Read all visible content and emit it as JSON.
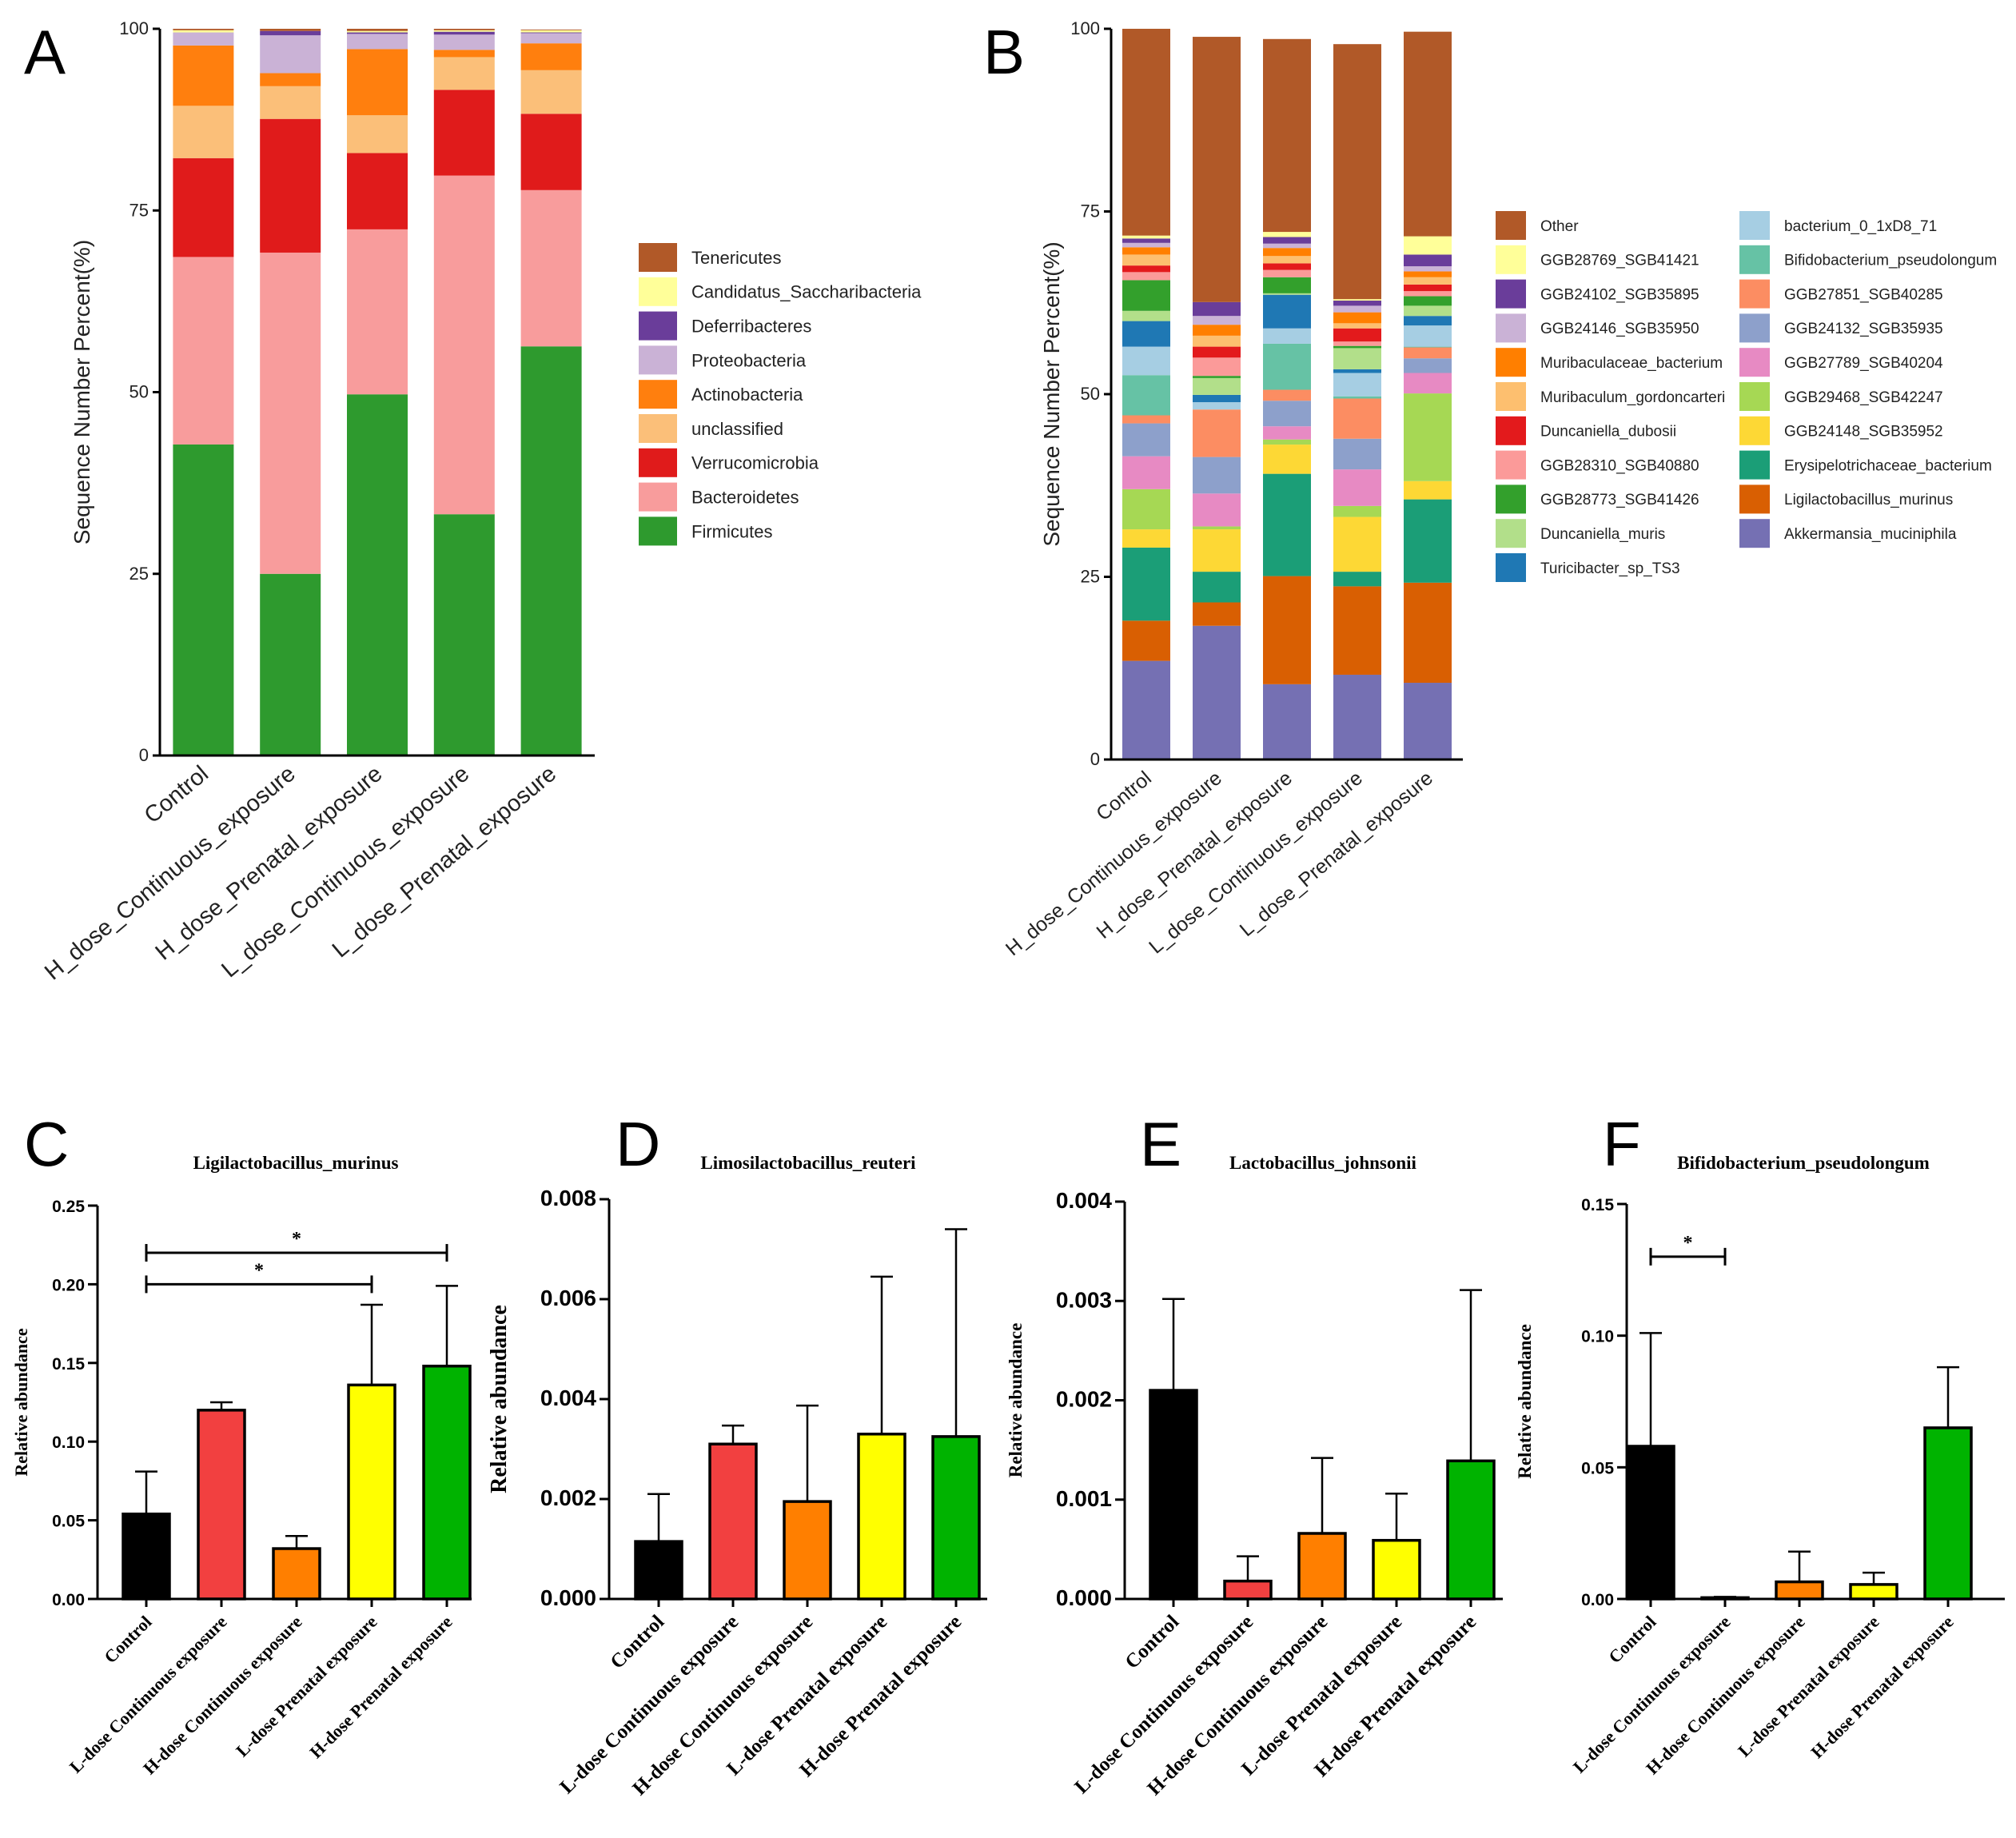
{
  "colors": {
    "A": {
      "Firmicutes": "#2e9a2e",
      "Bacteroidetes": "#f89c9c",
      "Verrucomicrobia": "#e01b1b",
      "unclassified": "#fbbf79",
      "Actinobacteria": "#ff7f0e",
      "Proteobacteria": "#cab2d6",
      "Deferribacteres": "#6a3d9a",
      "Candidatus_Saccharibacteria": "#ffff99",
      "Tenericutes": "#b15928"
    },
    "B": {
      "Akkermansia_muciniphila": "#7570b3",
      "Ligilactobacillus_murinus": "#d95f02",
      "Erysipelotrichaceae_bacterium": "#1b9e77",
      "GGB24148_SGB35952": "#fdd835",
      "GGB29468_SGB42247": "#a6d854",
      "GGB27789_SGB40204": "#e78ac3",
      "GGB24132_SGB35935": "#8da0cb",
      "GGB27851_SGB40285": "#fc8d62",
      "Bifidobacterium_pseudolongum": "#66c2a5",
      "bacterium_0_1xD8_71": "#a6cee3",
      "Turicibacter_sp_TS3": "#1f78b4",
      "Duncaniella_muris": "#b2df8a",
      "GGB28773_SGB41426": "#33a02c",
      "GGB28310_SGB40880": "#fb9a99",
      "Duncaniella_dubosii": "#e31a1c",
      "Muribaculum_gordoncarteri": "#fdbf6f",
      "Muribaculaceae_bacterium": "#ff7f00",
      "GGB24146_SGB35950": "#cab2d6",
      "GGB24102_SGB35895": "#6a3d9a",
      "GGB28769_SGB41421": "#ffff99",
      "Other": "#b15928"
    },
    "bars": [
      "#000000",
      "#f24040",
      "#ff7f00",
      "#ffff00",
      "#00b300"
    ]
  },
  "chart_data": [
    {
      "panel": "A",
      "type": "bar",
      "stacked": true,
      "title": "",
      "ylabel": "Sequence Number Percent(%)",
      "ylim": [
        0,
        100
      ],
      "yticks": [
        0,
        25,
        50,
        75,
        100
      ],
      "categories": [
        "Control",
        "H_dose_Continuous_exposure",
        "H_dose_Prenatal_exposure",
        "L_dose_Continuous_exposure",
        "L_dose_Prenatal_exposure"
      ],
      "legend": [
        "Tenericutes",
        "Candidatus_Saccharibacteria",
        "Deferribacteres",
        "Proteobacteria",
        "Actinobacteria",
        "unclassified",
        "Verrucomicrobia",
        "Bacteroidetes",
        "Firmicutes"
      ],
      "series": [
        {
          "name": "Firmicutes",
          "values": [
            42.8,
            25.0,
            49.7,
            33.2,
            56.3
          ]
        },
        {
          "name": "Bacteroidetes",
          "values": [
            25.8,
            44.2,
            22.7,
            46.6,
            21.5
          ]
        },
        {
          "name": "Verrucomicrobia",
          "values": [
            13.6,
            18.4,
            10.5,
            11.8,
            10.5
          ]
        },
        {
          "name": "unclassified",
          "values": [
            7.2,
            4.5,
            5.2,
            4.5,
            6.0
          ]
        },
        {
          "name": "Actinobacteria",
          "values": [
            8.3,
            1.8,
            9.1,
            1.0,
            3.7
          ]
        },
        {
          "name": "Proteobacteria",
          "values": [
            1.8,
            5.2,
            2.1,
            2.1,
            1.4
          ]
        },
        {
          "name": "Deferribacteres",
          "values": [
            0.0,
            0.6,
            0.2,
            0.4,
            0.1
          ]
        },
        {
          "name": "Candidatus_Saccharibacteria",
          "values": [
            0.3,
            0.0,
            0.2,
            0.2,
            0.3
          ]
        },
        {
          "name": "Tenericutes",
          "values": [
            0.2,
            0.3,
            0.3,
            0.2,
            0.1
          ]
        }
      ]
    },
    {
      "panel": "B",
      "type": "bar",
      "stacked": true,
      "title": "",
      "ylabel": "Sequence Number Percent(%)",
      "ylim": [
        0,
        100
      ],
      "yticks": [
        0,
        25,
        50,
        75,
        100
      ],
      "categories": [
        "Control",
        "H_dose_Continuous_exposure",
        "H_dose_Prenatal_exposure",
        "L_dose_Continuous_exposure",
        "L_dose_Prenatal_exposure"
      ],
      "legend_col1": [
        "Other",
        "GGB28769_SGB41421",
        "GGB24102_SGB35895",
        "GGB24146_SGB35950",
        "Muribaculaceae_bacterium",
        "Muribaculum_gordoncarteri",
        "Duncaniella_dubosii",
        "GGB28310_SGB40880",
        "GGB28773_SGB41426",
        "Duncaniella_muris",
        "Turicibacter_sp_TS3"
      ],
      "legend_col2": [
        "bacterium_0_1xD8_71",
        "Bifidobacterium_pseudolongum",
        "GGB27851_SGB40285",
        "GGB24132_SGB35935",
        "GGB27789_SGB40204",
        "GGB29468_SGB42247",
        "GGB24148_SGB35952",
        "Erysipelotrichaceae_bacterium",
        "Ligilactobacillus_murinus",
        "Akkermansia_muciniphila"
      ],
      "series": [
        {
          "name": "Akkermansia_muciniphila",
          "values": [
            13.5,
            18.3,
            10.3,
            11.6,
            10.5
          ]
        },
        {
          "name": "Ligilactobacillus_murinus",
          "values": [
            5.5,
            3.2,
            14.8,
            12.1,
            13.7
          ]
        },
        {
          "name": "Erysipelotrichaceae_bacterium",
          "values": [
            10.0,
            4.2,
            14.0,
            2.0,
            11.4
          ]
        },
        {
          "name": "GGB24148_SGB35952",
          "values": [
            2.5,
            5.8,
            4.0,
            7.5,
            2.5
          ]
        },
        {
          "name": "GGB29468_SGB42247",
          "values": [
            5.5,
            0.4,
            0.7,
            1.5,
            12.0
          ]
        },
        {
          "name": "GGB27789_SGB40204",
          "values": [
            4.5,
            4.5,
            1.8,
            5.0,
            2.8
          ]
        },
        {
          "name": "GGB24132_SGB35935",
          "values": [
            4.5,
            5.0,
            3.5,
            4.2,
            2.0
          ]
        },
        {
          "name": "GGB27851_SGB40285",
          "values": [
            1.1,
            6.5,
            1.5,
            5.5,
            1.5
          ]
        },
        {
          "name": "Bifidobacterium_pseudolongum",
          "values": [
            5.5,
            0.0,
            6.3,
            0.3,
            0.1
          ]
        },
        {
          "name": "bacterium_0_1xD8_71",
          "values": [
            3.9,
            1.0,
            2.1,
            3.2,
            2.9
          ]
        },
        {
          "name": "Turicibacter_sp_TS3",
          "values": [
            3.5,
            1.0,
            4.6,
            0.5,
            1.3
          ]
        },
        {
          "name": "Duncaniella_muris",
          "values": [
            1.4,
            2.3,
            0.2,
            2.9,
            1.4
          ]
        },
        {
          "name": "GGB28773_SGB41426",
          "values": [
            4.2,
            0.3,
            2.2,
            0.3,
            1.3
          ]
        },
        {
          "name": "GGB28310_SGB40880",
          "values": [
            1.1,
            2.5,
            1.0,
            0.6,
            0.7
          ]
        },
        {
          "name": "Duncaniella_dubosii",
          "values": [
            0.9,
            1.5,
            0.9,
            1.8,
            0.9
          ]
        },
        {
          "name": "Muribaculum_gordoncarteri",
          "values": [
            1.5,
            1.5,
            1.0,
            0.7,
            1.0
          ]
        },
        {
          "name": "Muribaculaceae_bacterium",
          "values": [
            1.0,
            1.5,
            1.1,
            1.5,
            0.8
          ]
        },
        {
          "name": "GGB24146_SGB35950",
          "values": [
            0.6,
            1.2,
            0.6,
            0.9,
            0.7
          ]
        },
        {
          "name": "GGB24102_SGB35895",
          "values": [
            0.6,
            1.9,
            0.9,
            0.7,
            1.6
          ]
        },
        {
          "name": "GGB28769_SGB41421",
          "values": [
            0.4,
            0.0,
            0.7,
            0.2,
            2.5
          ]
        },
        {
          "name": "Other",
          "values": [
            28.3,
            36.3,
            26.4,
            34.9,
            28.0
          ]
        }
      ]
    },
    {
      "panel": "C",
      "type": "bar",
      "title": "Ligilactobacillus_murinus",
      "ylabel": "Relative abundance",
      "ylim": [
        0,
        0.25
      ],
      "yticks": [
        "0.00",
        "0.05",
        "0.10",
        "0.15",
        "0.20",
        "0.25"
      ],
      "categories": [
        "Control",
        "L-dose Continuous exposure",
        "H-dose Continuous exposure",
        "L-dose Prenatal exposure",
        "H-dose Prenatal exposure"
      ],
      "values": [
        0.054,
        0.12,
        0.032,
        0.136,
        0.148
      ],
      "errors": [
        0.027,
        0.005,
        0.008,
        0.051,
        0.051
      ],
      "significance": [
        {
          "from": 0,
          "to": 3,
          "level": 0.2,
          "label": "*"
        },
        {
          "from": 0,
          "to": 4,
          "level": 0.22,
          "label": "*"
        }
      ]
    },
    {
      "panel": "D",
      "type": "bar",
      "title": "Limosilactobacillus_reuteri",
      "ylabel": "Relative abundance",
      "ylim": [
        0,
        0.008
      ],
      "yticks": [
        "0.000",
        "0.002",
        "0.004",
        "0.006",
        "0.008"
      ],
      "categories": [
        "Control",
        "L-dose Continuous exposure",
        "H-dose Continuous exposure",
        "L-dose Prenatal exposure",
        "H-dose Prenatal exposure"
      ],
      "values": [
        0.00115,
        0.0031,
        0.00195,
        0.0033,
        0.00325
      ],
      "errors": [
        0.00095,
        0.00037,
        0.00192,
        0.00315,
        0.00415
      ],
      "significance": []
    },
    {
      "panel": "E",
      "type": "bar",
      "title": "Lactobacillus_johnsonii",
      "ylabel": "Relative abundance",
      "ylim": [
        0,
        0.004
      ],
      "yticks": [
        "0.000",
        "0.001",
        "0.002",
        "0.003",
        "0.004"
      ],
      "categories": [
        "Control",
        "L-dose Continuous exposure",
        "H-dose Continuous exposure",
        "L-dose Prenatal exposure",
        "H-dose Prenatal exposure"
      ],
      "values": [
        0.0021,
        0.00018,
        0.00066,
        0.00059,
        0.00139
      ],
      "errors": [
        0.00092,
        0.00025,
        0.00076,
        0.00047,
        0.00172
      ],
      "significance": []
    },
    {
      "panel": "F",
      "type": "bar",
      "title": "Bifidobacterium_pseudolongum",
      "ylabel": "Relative abundance",
      "ylim": [
        0,
        0.15
      ],
      "yticks": [
        "0.00",
        "0.05",
        "0.10",
        "0.15"
      ],
      "categories": [
        "Control",
        "L-dose Continuous exposure",
        "H-dose Continuous exposure",
        "L-dose Prenatal exposure",
        "H-dose Prenatal exposure"
      ],
      "values": [
        0.058,
        0.0005,
        0.0065,
        0.0055,
        0.065
      ],
      "errors": [
        0.043,
        0.0003,
        0.0115,
        0.0045,
        0.023
      ],
      "significance": [
        {
          "from": 0,
          "to": 1,
          "level": 0.13,
          "label": "*"
        }
      ]
    }
  ]
}
